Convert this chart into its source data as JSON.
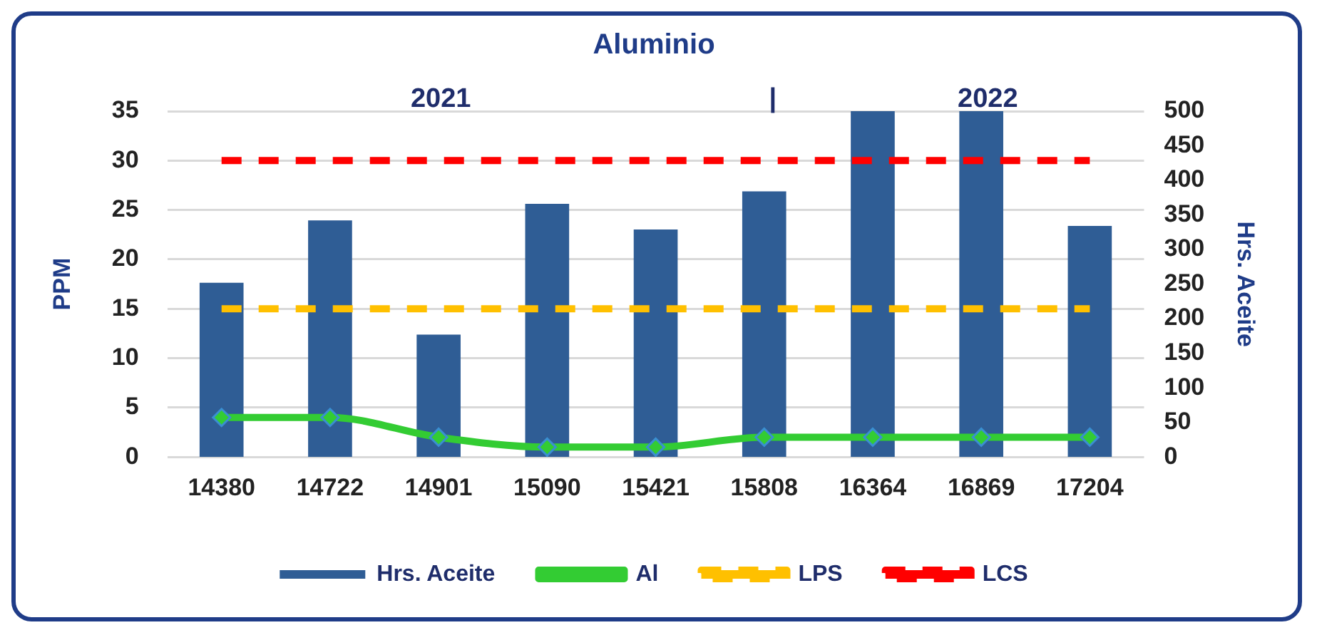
{
  "chart_data": {
    "type": "bar",
    "title": "Aluminio",
    "annotations": [
      "2021",
      "|",
      "2022"
    ],
    "ylabel": "PPM",
    "y2label": "Hrs. Aceite",
    "categories": [
      "14380",
      "14722",
      "14901",
      "15090",
      "15421",
      "15808",
      "16364",
      "16869",
      "17204"
    ],
    "series": [
      {
        "name": "Hrs. Aceite",
        "axis": "y2",
        "color": "#2f5d95",
        "values": [
          252,
          342,
          177,
          366,
          329,
          384,
          500,
          500,
          334
        ]
      },
      {
        "name": "Al",
        "type": "line",
        "color": "#33cc33",
        "marker": "diamond",
        "values": [
          4,
          4,
          2,
          1,
          1,
          2,
          2,
          2,
          2
        ]
      },
      {
        "name": "LPS",
        "type": "line",
        "color": "#ffc000",
        "line_style": "dashed",
        "marker": "none",
        "values": [
          15,
          15,
          15,
          15,
          15,
          15,
          15,
          15,
          15
        ]
      },
      {
        "name": "LCS",
        "type": "line",
        "color": "#ff0000",
        "line_style": "dashed",
        "marker": "none",
        "values": [
          30,
          30,
          30,
          30,
          30,
          30,
          30,
          30,
          30
        ]
      }
    ],
    "ylim": [
      0,
      35
    ],
    "yticks": [
      0,
      5,
      10,
      15,
      20,
      25,
      30,
      35
    ],
    "y2lim": [
      0,
      500
    ],
    "y2ticks": [
      0,
      50,
      100,
      150,
      200,
      250,
      300,
      350,
      400,
      450,
      500
    ],
    "grid": "y",
    "legend": "bottom"
  }
}
